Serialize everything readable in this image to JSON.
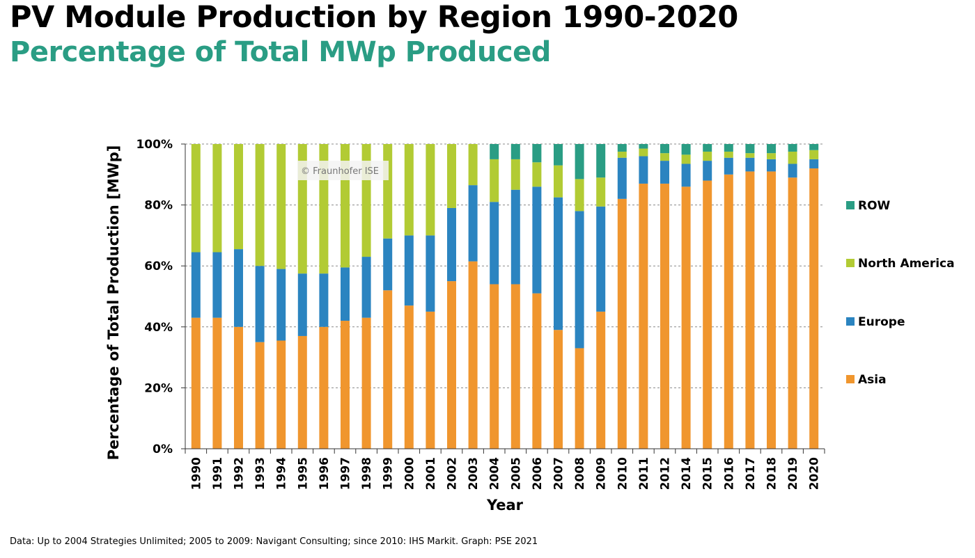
{
  "header": {
    "title": "PV Module Production by Region 1990-2020",
    "subtitle": "Percentage of Total MWp Produced"
  },
  "footer": {
    "source": "Data: Up to 2004 Strategies Unlimited; 2005 to 2009: Navigant Consulting; since 2010: IHS Markit. Graph: PSE 2021"
  },
  "watermark": "© Fraunhofer ISE",
  "colors": {
    "Asia": "#f0962e",
    "Europe": "#2b84c0",
    "North America": "#b2cb34",
    "ROW": "#2a9d84",
    "subtitle": "#2a9d84",
    "grid": "#888888"
  },
  "chart_data": {
    "type": "bar",
    "stacked": true,
    "title": "PV Module Production by Region 1990-2020",
    "subtitle": "Percentage of Total MWp Produced",
    "xlabel": "Year",
    "ylabel": "Percentage of Total Production [MWp]",
    "ylim": [
      0,
      100
    ],
    "yticks": [
      "0%",
      "20%",
      "40%",
      "60%",
      "80%",
      "100%"
    ],
    "grid": true,
    "legend_position": "right",
    "legend_order": [
      "ROW",
      "North America",
      "Europe",
      "Asia"
    ],
    "categories": [
      "1990",
      "1991",
      "1992",
      "1993",
      "1994",
      "1995",
      "1996",
      "1997",
      "1998",
      "1999",
      "2000",
      "2001",
      "2002",
      "2003",
      "2004",
      "2005",
      "2006",
      "2007",
      "2008",
      "2009",
      "2010",
      "2011",
      "2012",
      "2014",
      "2015",
      "2016",
      "2017",
      "2018",
      "2019",
      "2020"
    ],
    "series": [
      {
        "name": "Asia",
        "values": [
          43,
          43,
          40,
          35,
          35.5,
          37,
          40,
          42,
          43,
          52,
          47,
          45,
          55,
          61.5,
          54,
          54,
          51,
          39,
          33,
          45,
          82,
          87,
          87,
          86,
          88,
          90,
          91,
          91,
          89,
          92
        ]
      },
      {
        "name": "Europe",
        "values": [
          21.5,
          21.5,
          25.5,
          25,
          23.5,
          20.5,
          17.5,
          17.5,
          20,
          17,
          23,
          25,
          24,
          25,
          27,
          31,
          35,
          43.5,
          45,
          34.5,
          13.5,
          9,
          7.5,
          7.5,
          6.5,
          5.5,
          4.5,
          4,
          4.5,
          3
        ]
      },
      {
        "name": "North America",
        "values": [
          35.5,
          35.5,
          34.5,
          40,
          41,
          42.5,
          42.5,
          40.5,
          37,
          31,
          30,
          30,
          21,
          13.5,
          14,
          10,
          8,
          10.5,
          10.5,
          9.5,
          2,
          2.5,
          2.5,
          3,
          3,
          2,
          1.5,
          2,
          4,
          3
        ]
      },
      {
        "name": "ROW",
        "values": [
          0,
          0,
          0,
          0,
          0,
          0,
          0,
          0,
          0,
          0,
          0,
          0,
          0,
          0,
          5,
          5,
          6,
          7,
          11.5,
          11,
          2.5,
          1.5,
          3,
          3.5,
          2.5,
          2.5,
          3,
          3,
          2.5,
          2
        ]
      }
    ]
  }
}
